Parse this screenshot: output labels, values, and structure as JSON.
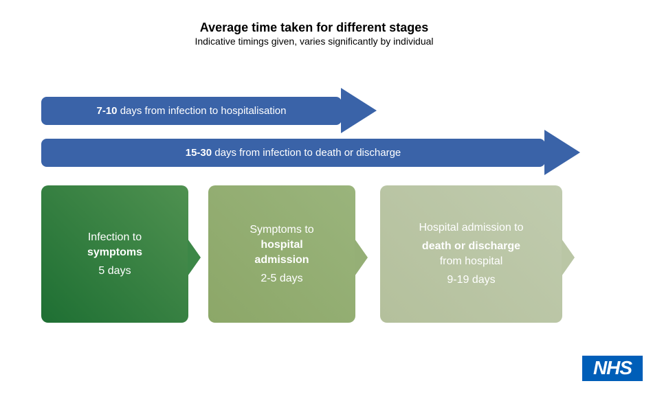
{
  "header": {
    "title": "Average time taken for different stages",
    "subtitle": "Indicative timings given, varies significantly by individual"
  },
  "arrows": [
    {
      "bold": "7-10",
      "rest": " days from infection to hospitalisation"
    },
    {
      "bold": "15-30",
      "rest": " days from infection to death or discharge"
    }
  ],
  "stages": [
    {
      "intro": "Infection to",
      "bold_line1": "symptoms",
      "duration": "5 days"
    },
    {
      "intro": "Symptoms to",
      "bold_line1": "hospital",
      "bold_line2": "admission",
      "duration": "2-5 days"
    },
    {
      "intro": "Hospital admission to",
      "bold_line1": "death or discharge",
      "outro": "from hospital",
      "duration": "9-19 days"
    }
  ],
  "logo": {
    "text": "NHS"
  },
  "colors": {
    "arrow_blue": "#3A63A8",
    "stage1_green_dark": "#1E6F33",
    "stage1_green_light": "#4F9150",
    "stage2_green": "#95AF76",
    "stage3_green": "#BAC6A5",
    "nhs_blue": "#005EB8",
    "text_white": "#FFFFFF"
  }
}
